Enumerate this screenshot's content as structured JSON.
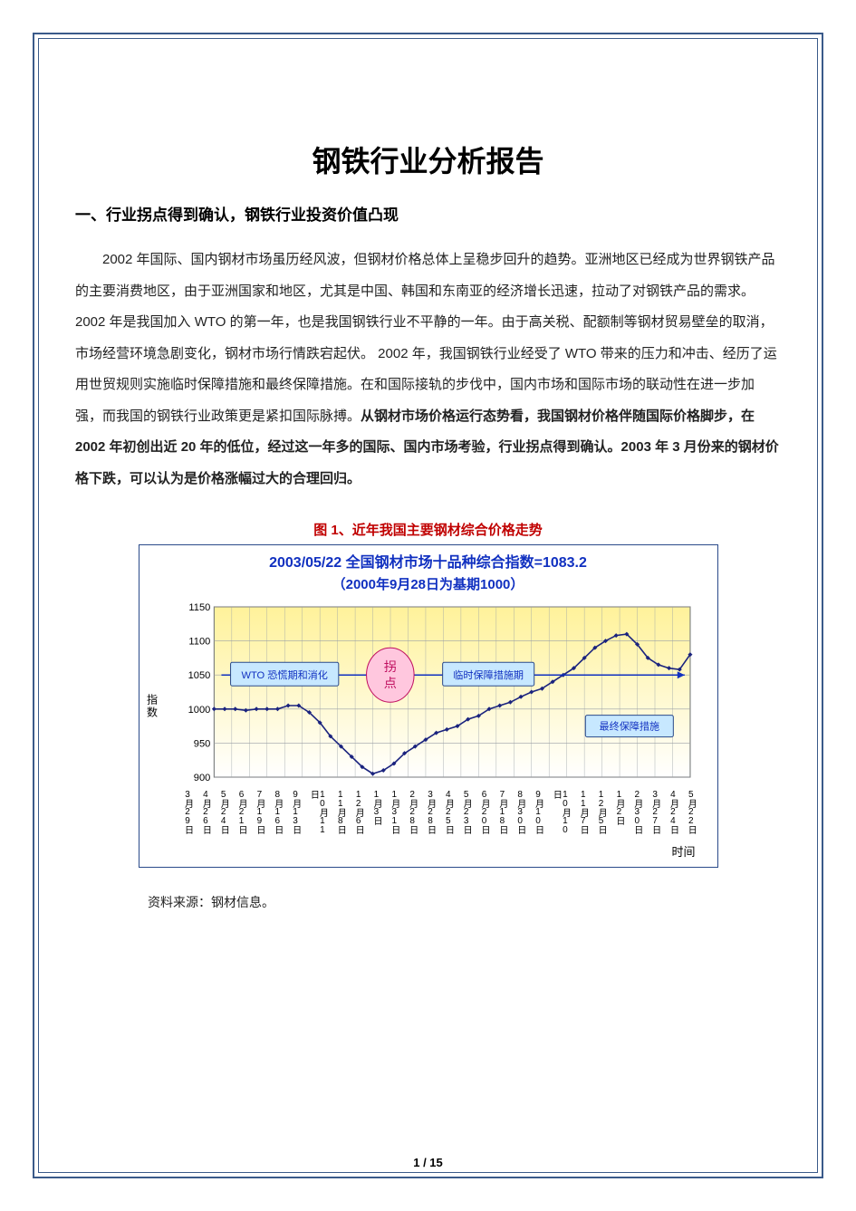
{
  "title": "钢铁行业分析报告",
  "section1_heading": "一、行业拐点得到确认，钢铁行业投资价值凸现",
  "para1_plain": "2002 年国际、国内钢材市场虽历经风波，但钢材价格总体上呈稳步回升的趋势。亚洲地区已经成为世界钢铁产品的主要消费地区，由于亚洲国家和地区，尤其是中国、韩国和东南亚的经济增长迅速，拉动了对钢铁产品的需求。2002 年是我国加入 WTO 的第一年，也是我国钢铁行业不平静的一年。由于高关税、配额制等钢材贸易壁垒的取消，市场经营环境急剧变化，钢材市场行情跌宕起伏。 2002 年，我国钢铁行业经受了 WTO 带来的压力和冲击、经历了运用世贸规则实施临时保障措施和最终保障措施。在和国际接轨的步伐中，国内市场和国际市场的联动性在进一步加强，而我国的钢铁行业政策更是紧扣国际脉搏。",
  "para1_bold": "从钢材市场价格运行态势看，我国钢材价格伴随国际价格脚步，在 2002 年初创出近 20 年的低位，经过这一年多的国际、国内市场考验，行业拐点得到确认。2003 年 3 月份来的钢材价格下跌，可以认为是价格涨幅过大的合理回归。",
  "figure_caption": "图 1、近年我国主要钢材综合价格走势",
  "chart": {
    "type": "line",
    "title_line1": "2003/05/22 全国钢材市场十品种综合指数=1083.2",
    "title_line2": "（2000年9月28日为基期1000）",
    "y_axis_label": "指数",
    "x_axis_label": "时间",
    "ylim": [
      900,
      1150
    ],
    "ytick_step": 50,
    "yticks": [
      900,
      950,
      1000,
      1050,
      1100,
      1150
    ],
    "x_labels": [
      "3月29日",
      "4月26日",
      "5月24日",
      "6月21日",
      "7月19日",
      "8月16日",
      "9月13日",
      "10月11日",
      "11月8日",
      "12月6日",
      "1月3日",
      "1月31日",
      "2月28日",
      "3月28日",
      "4月25日",
      "5月23日",
      "6月20日",
      "7月18日",
      "8月30日",
      "9月10日",
      "10月10日",
      "11月7日",
      "12月5日",
      "1月2日",
      "2月30日",
      "3月27日",
      "4月24日",
      "5月22日"
    ],
    "series_values": [
      1000,
      1000,
      1000,
      998,
      1000,
      1000,
      1000,
      1005,
      1005,
      995,
      980,
      960,
      945,
      930,
      915,
      905,
      910,
      920,
      935,
      945,
      955,
      965,
      970,
      975,
      985,
      990,
      1000,
      1005,
      1010,
      1018,
      1025,
      1030,
      1040,
      1050,
      1060,
      1075,
      1090,
      1100,
      1108,
      1110,
      1095,
      1075,
      1065,
      1060,
      1058,
      1080
    ],
    "series_color": "#1a237e",
    "marker_style": "diamond",
    "marker_size": 5,
    "grid_color": "#9aa0a6",
    "background_gradient_top": "#fff29a",
    "background_gradient_bottom": "#ffffff",
    "annotations": {
      "wto_box": {
        "label": "WTO 恐慌期和消化",
        "fill": "#c7e8ff",
        "stroke": "#2a4a8a",
        "text_color": "#1030c0"
      },
      "turning_point": {
        "label": "拐\n点",
        "fill": "#ffc7de",
        "stroke": "#c01060",
        "text_color": "#c01060"
      },
      "temp_measures": {
        "label": "临时保障措施期",
        "fill": "#c7e8ff",
        "stroke": "#2a4a8a",
        "text_color": "#1030c0"
      },
      "final_measures": {
        "label": "最终保障措施",
        "fill": "#c7e8ff",
        "stroke": "#2a4a8a",
        "text_color": "#1030c0"
      }
    }
  },
  "source_text": "资料来源：钢材信息。",
  "page_number": "1 / 15"
}
